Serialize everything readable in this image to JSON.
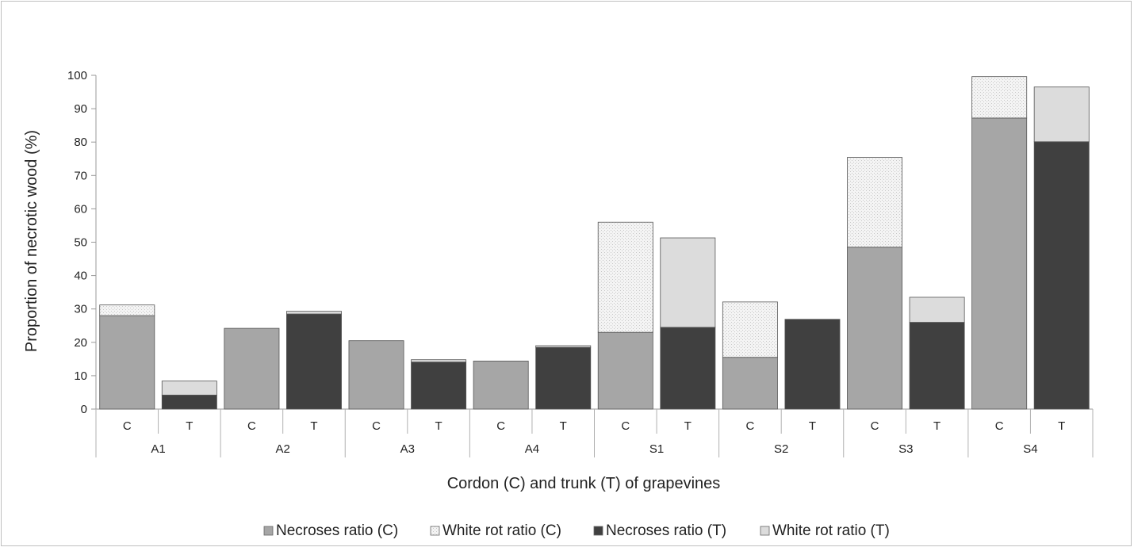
{
  "chart_data": {
    "type": "bar",
    "stacked": true,
    "title": "",
    "xlabel": "Cordon (C) and trunk (T) of grapevines",
    "ylabel": "Proportion of necrotic wood (%)",
    "ylim": [
      0,
      100
    ],
    "yticks": [
      "0",
      "10",
      "20",
      "30",
      "40",
      "50",
      "60",
      "70",
      "80",
      "90",
      "100"
    ],
    "grid": false,
    "legend_position": "bottom",
    "groups": [
      "A1",
      "A2",
      "A3",
      "A4",
      "S1",
      "S2",
      "S3",
      "S4"
    ],
    "bars": [
      {
        "group": "A1",
        "label": "C",
        "part": "C",
        "necroses": 28,
        "white_rot": 3.2
      },
      {
        "group": "A1",
        "label": "T",
        "part": "T",
        "necroses": 4.2,
        "white_rot": 4.2
      },
      {
        "group": "A2",
        "label": "C",
        "part": "C",
        "necroses": 24.2,
        "white_rot": 0
      },
      {
        "group": "A2",
        "label": "T",
        "part": "T",
        "necroses": 28.5,
        "white_rot": 0.8
      },
      {
        "group": "A3",
        "label": "C",
        "part": "C",
        "necroses": 20.5,
        "white_rot": 0
      },
      {
        "group": "A3",
        "label": "T",
        "part": "T",
        "necroses": 14.1,
        "white_rot": 0.7
      },
      {
        "group": "A4",
        "label": "C",
        "part": "C",
        "necroses": 14.4,
        "white_rot": 0
      },
      {
        "group": "A4",
        "label": "T",
        "part": "T",
        "necroses": 18.5,
        "white_rot": 0.5
      },
      {
        "group": "S1",
        "label": "C",
        "part": "C",
        "necroses": 23,
        "white_rot": 33
      },
      {
        "group": "S1",
        "label": "T",
        "part": "T",
        "necroses": 24.5,
        "white_rot": 26.8
      },
      {
        "group": "S2",
        "label": "C",
        "part": "C",
        "necroses": 15.5,
        "white_rot": 16.6
      },
      {
        "group": "S2",
        "label": "T",
        "part": "T",
        "necroses": 26.9,
        "white_rot": 0
      },
      {
        "group": "S3",
        "label": "C",
        "part": "C",
        "necroses": 48.5,
        "white_rot": 26.9
      },
      {
        "group": "S3",
        "label": "T",
        "part": "T",
        "necroses": 26,
        "white_rot": 7.5
      },
      {
        "group": "S4",
        "label": "C",
        "part": "C",
        "necroses": 87.2,
        "white_rot": 12.4
      },
      {
        "group": "S4",
        "label": "T",
        "part": "T",
        "necroses": 80.1,
        "white_rot": 16.4
      }
    ],
    "series": [
      {
        "name": "Necroses ratio (C)",
        "part": "C",
        "kind": "necroses",
        "color": "#a6a6a6"
      },
      {
        "name": "White rot ratio (C)",
        "part": "C",
        "kind": "white_rot",
        "color": "#f2f2f2"
      },
      {
        "name": "Necroses ratio (T)",
        "part": "T",
        "kind": "necroses",
        "color": "#404040"
      },
      {
        "name": "White rot ratio (T)",
        "part": "T",
        "kind": "white_rot",
        "color": "#dcdcdc"
      }
    ]
  }
}
